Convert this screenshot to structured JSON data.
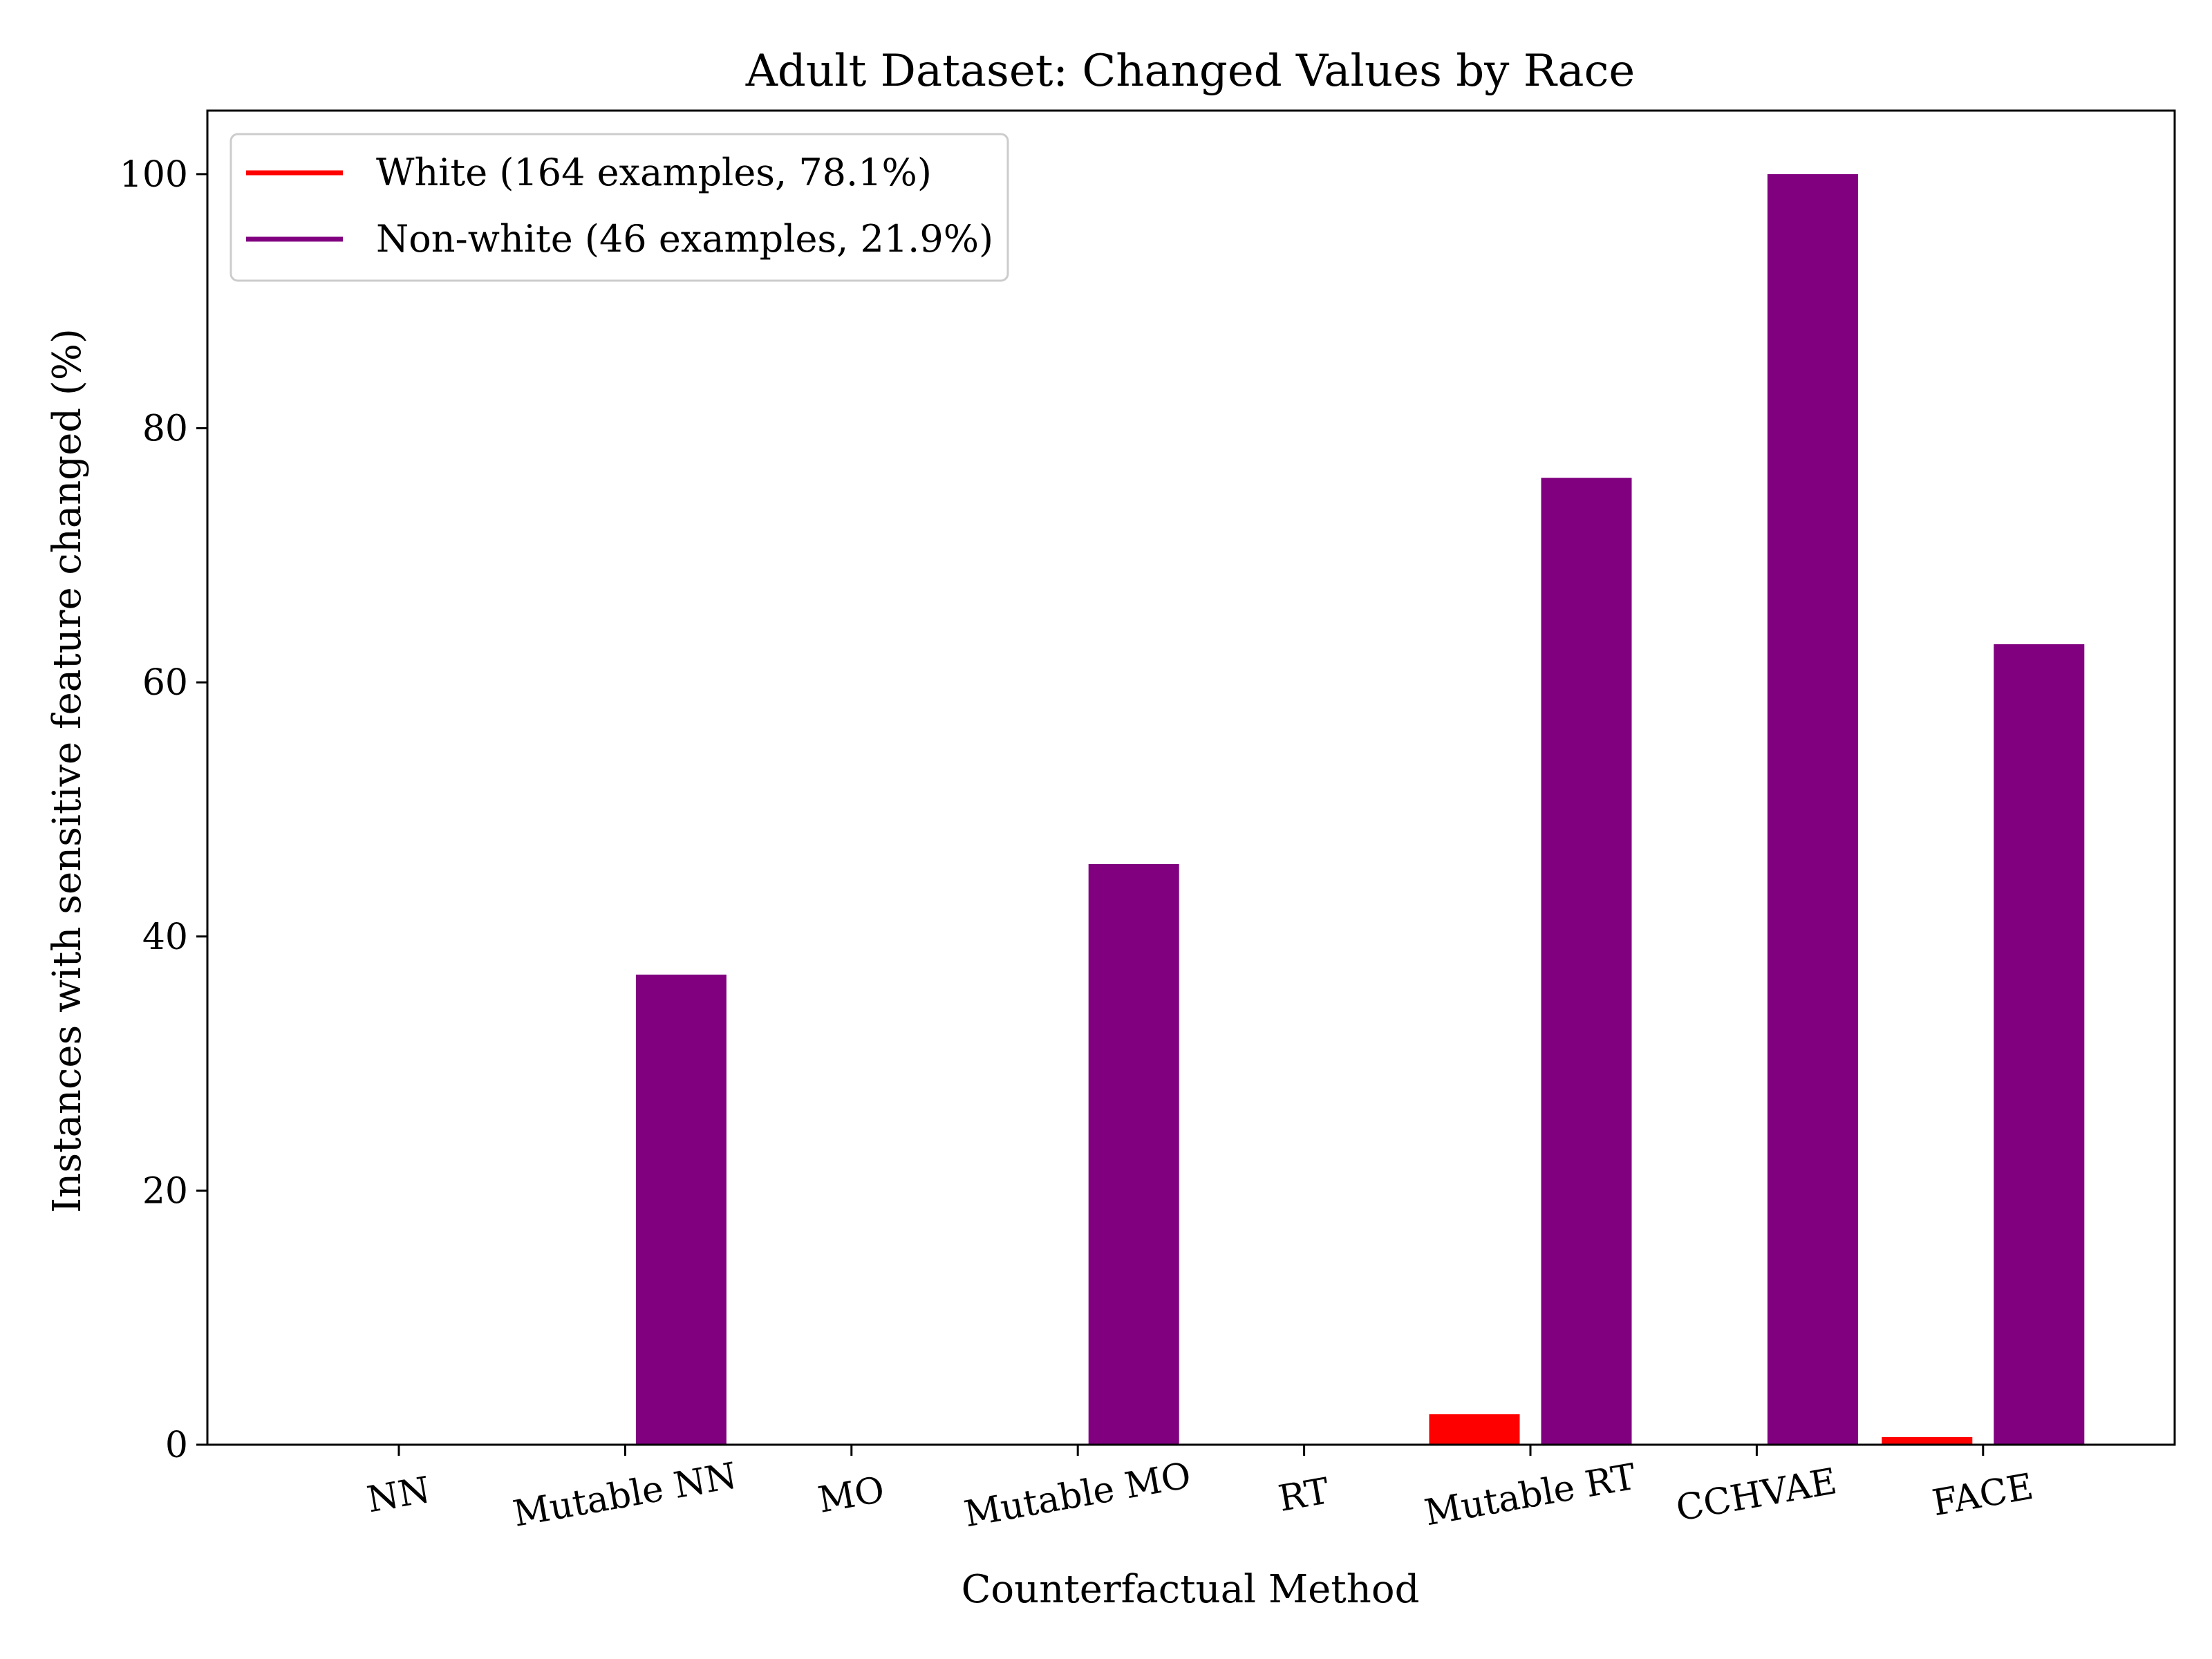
{
  "chart_data": {
    "type": "bar",
    "title": "Adult Dataset: Changed Values by Race",
    "xlabel": "Counterfactual Method",
    "ylabel": "Instances with sensitive feature changed (%)",
    "ylim": [
      0,
      105
    ],
    "yticks": [
      0,
      20,
      40,
      60,
      80,
      100
    ],
    "categories": [
      "NN",
      "Mutable NN",
      "MO",
      "Mutable MO",
      "RT",
      "Mutable RT",
      "CCHVAE",
      "FACE"
    ],
    "series": [
      {
        "name": "White (164 examples, 78.1%)",
        "color": "#ff0000",
        "values": [
          0,
          0,
          0,
          0,
          0,
          2.4,
          0,
          0.6
        ]
      },
      {
        "name": "Non-white (46 examples, 21.9%)",
        "color": "#800080",
        "values": [
          0,
          37.0,
          0,
          45.7,
          0,
          76.1,
          100,
          63.0
        ]
      }
    ],
    "legend_position": "top-left",
    "grid": false
  }
}
